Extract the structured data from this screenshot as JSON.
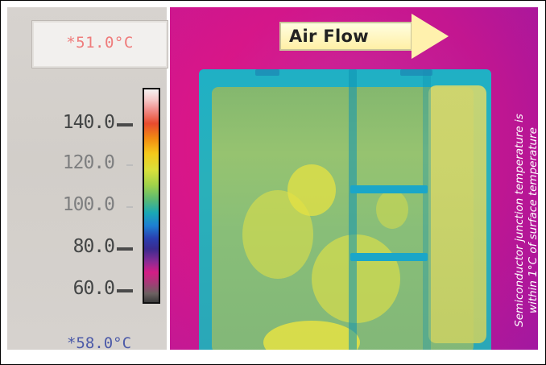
{
  "left_panel": {
    "max_label": "*51.0°C",
    "min_label": "*58.0°C"
  },
  "scale": {
    "ticks": [
      {
        "label": "140.0",
        "state": "bold"
      },
      {
        "label": "120.0",
        "state": "dim"
      },
      {
        "label": "100.0",
        "state": "dim"
      },
      {
        "label": "80.0",
        "state": "bold"
      },
      {
        "label": "60.0",
        "state": "bold"
      }
    ]
  },
  "thermal_image": {
    "airflow_label": "Air Flow",
    "note_line1": "Semiconductor junction temperature is",
    "note_line2": "within 1°C of surface temperature"
  }
}
